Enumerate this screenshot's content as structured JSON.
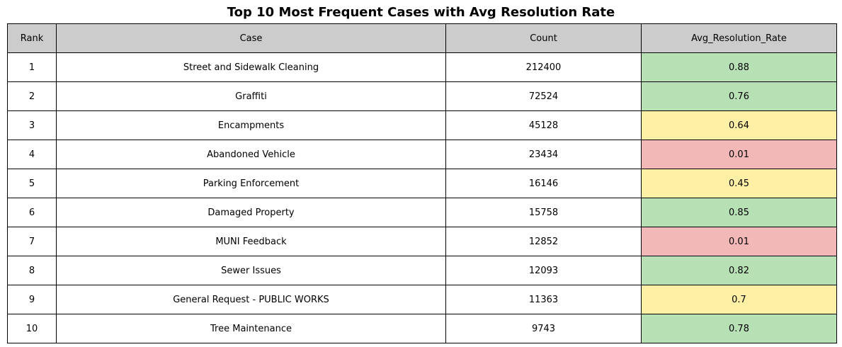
{
  "chart_data": {
    "type": "table",
    "title": "Top 10 Most Frequent Cases with Avg Resolution Rate",
    "columns": [
      "Rank",
      "Case",
      "Count",
      "Avg_Resolution_Rate"
    ],
    "rows": [
      {
        "rank": "1",
        "case": "Street and Sidewalk Cleaning",
        "count": "212400",
        "rate": "0.88"
      },
      {
        "rank": "2",
        "case": "Graffiti",
        "count": "72524",
        "rate": "0.76"
      },
      {
        "rank": "3",
        "case": "Encampments",
        "count": "45128",
        "rate": "0.64"
      },
      {
        "rank": "4",
        "case": "Abandoned Vehicle",
        "count": "23434",
        "rate": "0.01"
      },
      {
        "rank": "5",
        "case": "Parking Enforcement",
        "count": "16146",
        "rate": "0.45"
      },
      {
        "rank": "6",
        "case": "Damaged Property",
        "count": "15758",
        "rate": "0.85"
      },
      {
        "rank": "7",
        "case": "MUNI Feedback",
        "count": "12852",
        "rate": "0.01"
      },
      {
        "rank": "8",
        "case": "Sewer Issues",
        "count": "12093",
        "rate": "0.82"
      },
      {
        "rank": "9",
        "case": "General Request - PUBLIC WORKS",
        "count": "11363",
        "rate": "0.7"
      },
      {
        "rank": "10",
        "case": "Tree Maintenance",
        "count": "9743",
        "rate": "0.78"
      }
    ],
    "rate_colors": {
      "high": "#b7e1b5",
      "medium": "#fff0a5",
      "low": "#f2b8b8"
    },
    "header_color": "#cccccc"
  }
}
